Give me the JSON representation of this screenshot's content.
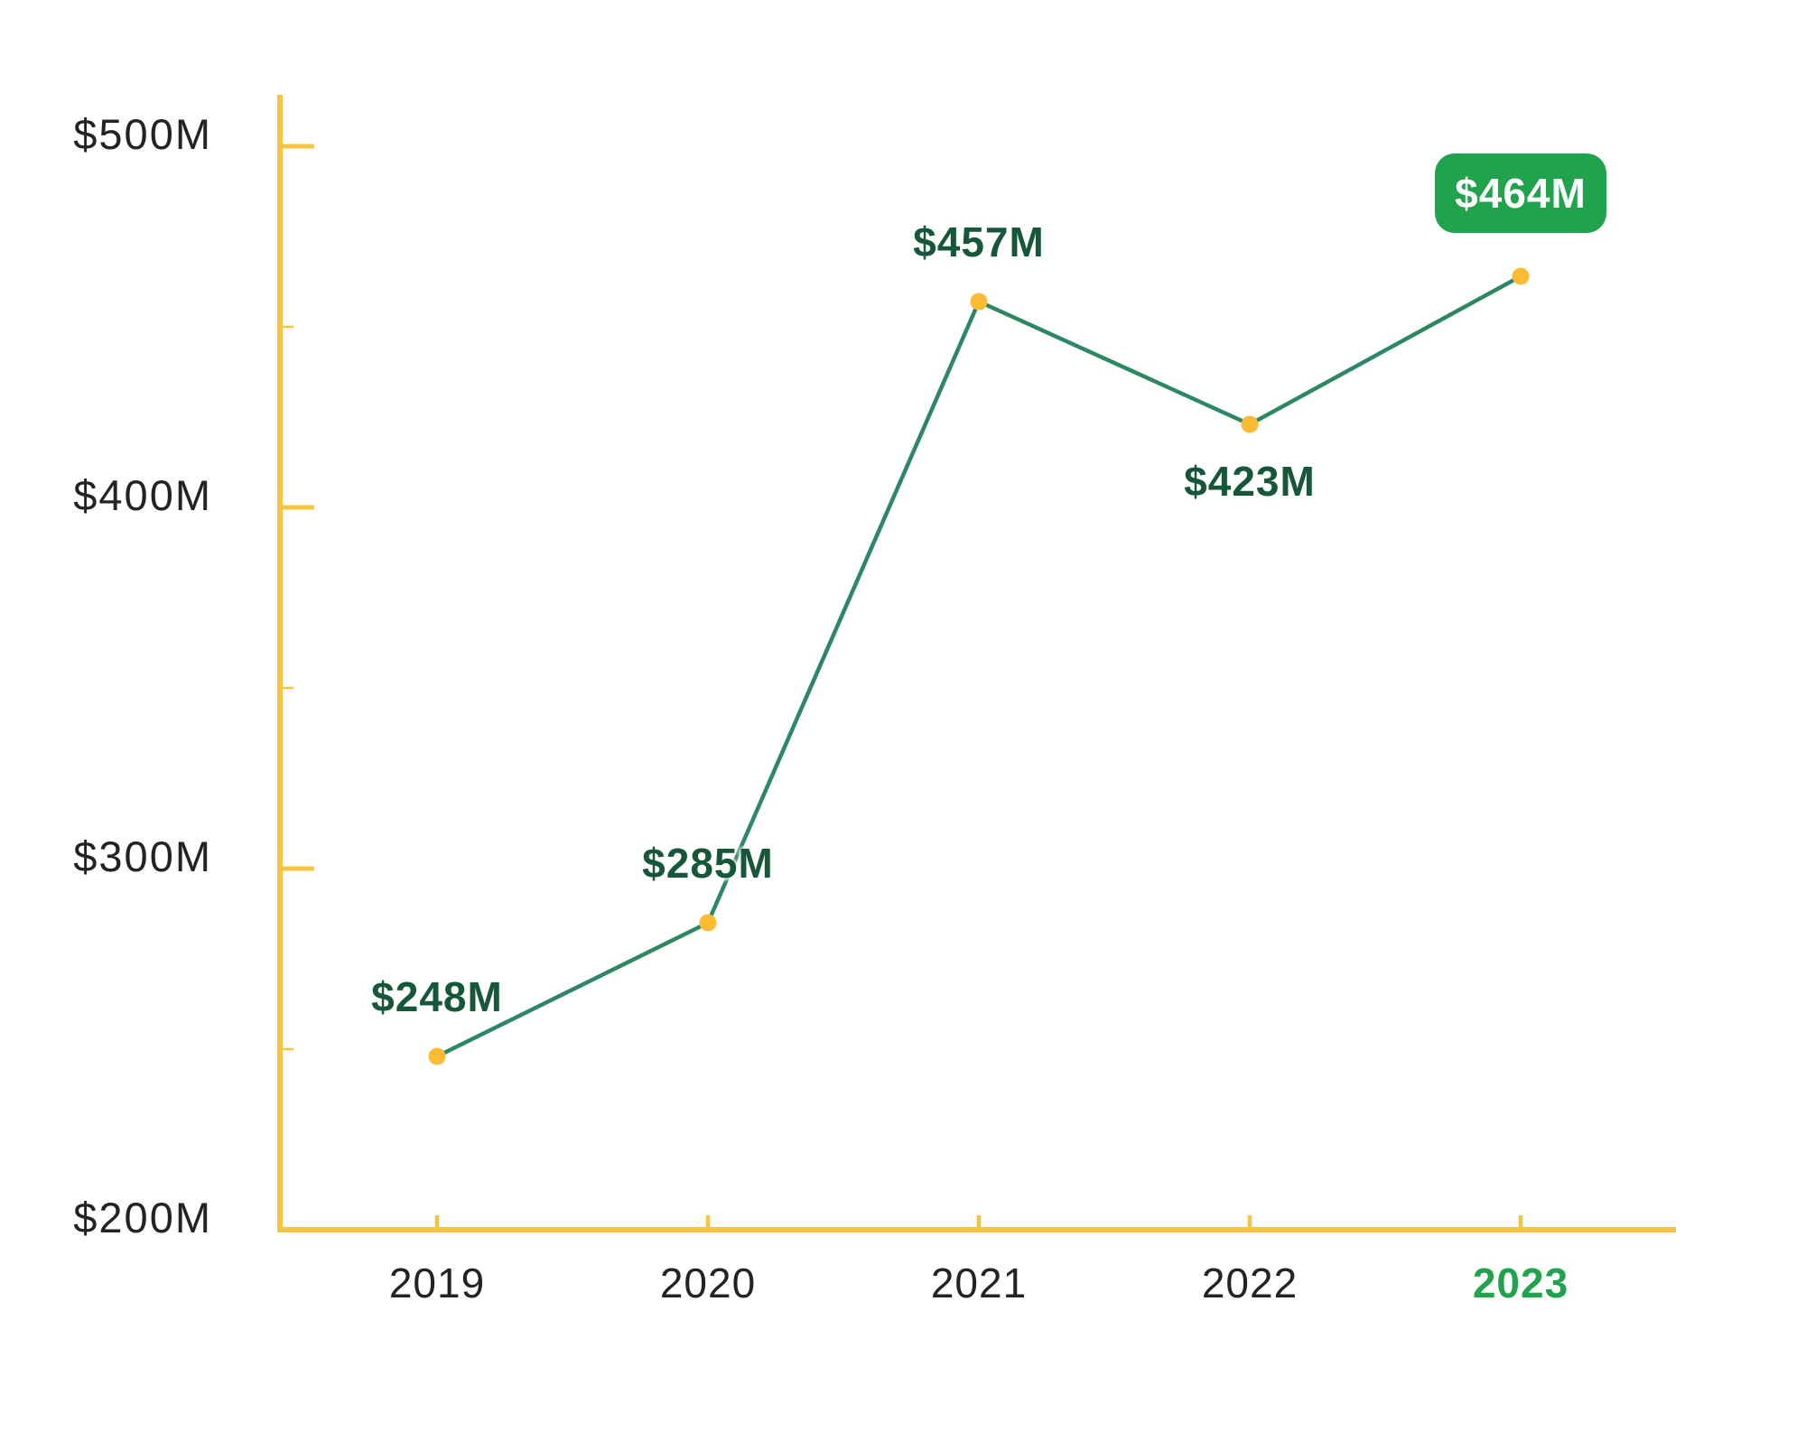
{
  "chart_data": {
    "type": "line",
    "title": "",
    "xlabel": "",
    "ylabel": "",
    "unit": "$M",
    "categories": [
      "2019",
      "2020",
      "2021",
      "2022",
      "2023"
    ],
    "values": [
      248,
      285,
      457,
      423,
      464
    ],
    "points": [
      {
        "year": "2019",
        "value": 248,
        "label": "$248M",
        "label_position": "above"
      },
      {
        "year": "2020",
        "value": 285,
        "label": "$285M",
        "label_position": "above"
      },
      {
        "year": "2021",
        "value": 457,
        "label": "$457M",
        "label_position": "above"
      },
      {
        "year": "2022",
        "value": 423,
        "label": "$423M",
        "label_position": "below"
      },
      {
        "year": "2023",
        "value": 464,
        "label": "$464M",
        "label_position": "callout",
        "highlighted": true
      }
    ],
    "y_axis": {
      "range": [
        200,
        500
      ],
      "major_tick_step": 100,
      "minor_tick_step": 50,
      "major_ticks": [
        {
          "value": 500,
          "label": "$500M"
        },
        {
          "value": 400,
          "label": "$400M"
        },
        {
          "value": 300,
          "label": "$300M"
        },
        {
          "value": 200,
          "label": "$200M"
        }
      ],
      "minor_ticks": [
        450,
        350,
        250
      ]
    },
    "x_axis": {
      "labels": [
        "2019",
        "2020",
        "2021",
        "2022",
        "2023"
      ],
      "highlighted_label": "2023"
    },
    "grid": false,
    "legend": null,
    "colors": {
      "axis": "#F7C342",
      "line": "#2E8763",
      "point": "#FBBC33",
      "data_label": "#16573A",
      "axis_label": "#232326",
      "highlight": "#21A24C",
      "callout_bg": "#21A24C",
      "callout_text": "#FFFFFF"
    }
  }
}
